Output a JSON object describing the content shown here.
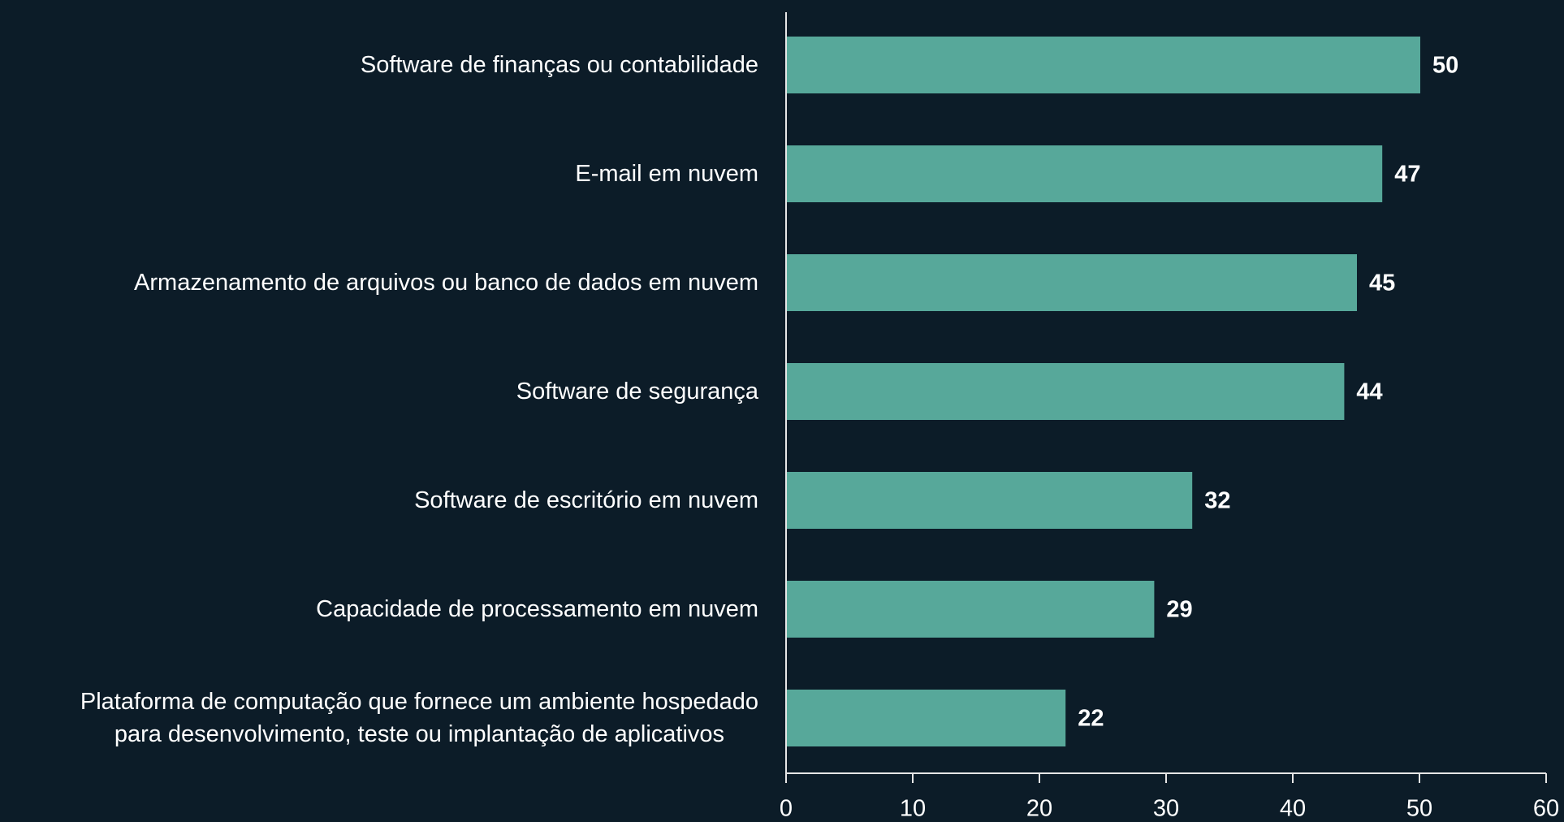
{
  "chart_data": {
    "type": "barh",
    "categories": [
      "Software de finanças ou contabilidade",
      "E-mail em nuvem",
      "Armazenamento de arquivos ou banco de dados em nuvem",
      "Software de segurança",
      "Software de escritório em nuvem",
      "Capacidade de processamento em nuvem",
      "Plataforma de computação que fornece um ambiente hospedado\npara desenvolvimento, teste ou implantação de aplicativos"
    ],
    "values": [
      50,
      47,
      45,
      44,
      32,
      29,
      22
    ],
    "color": "#57a89a",
    "xlim": [
      0,
      60
    ],
    "xticks": [
      0,
      10,
      20,
      30,
      40,
      50,
      60
    ]
  }
}
